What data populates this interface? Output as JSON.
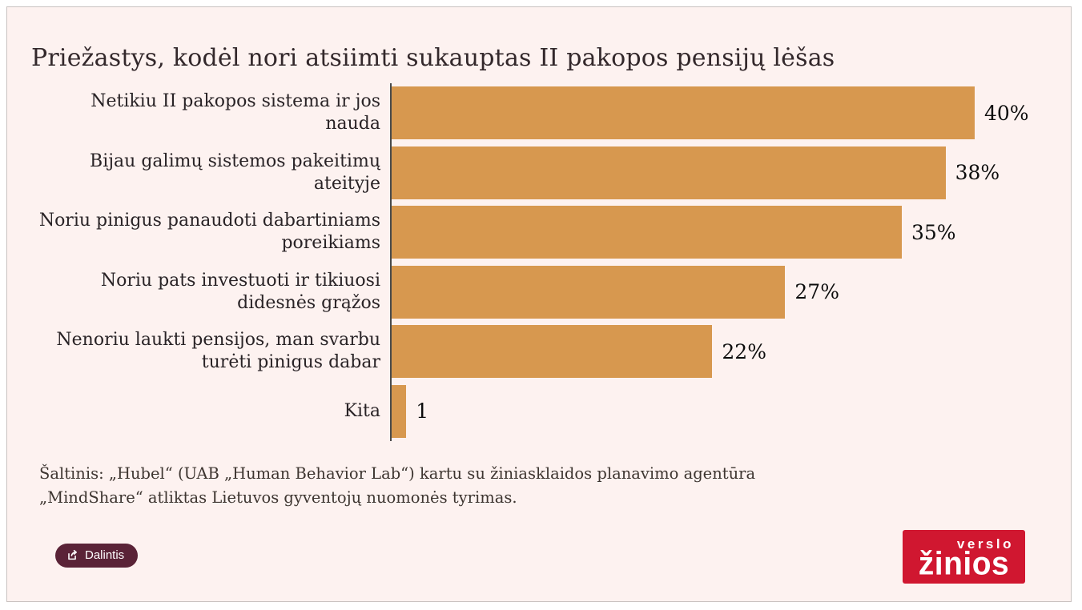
{
  "title": "Priežastys, kodėl nori atsiimti sukauptas II pakopos pensijų lėšas",
  "chart_data": {
    "type": "bar",
    "orientation": "horizontal",
    "title": "Priežastys, kodėl nori atsiimti sukauptas II pakopos pensijų lėšas",
    "categories": [
      "Netikiu II pakopos sistema ir jos\nnauda",
      "Bijau galimų sistemos pakeitimų\nateityje",
      "Noriu pinigus panaudoti dabartiniams\nporeikiams",
      "Noriu pats investuoti ir tikiuosi\ndidesnės grąžos",
      "Nenoriu laukti pensijos, man svarbu\nturėti pinigus dabar",
      "Kita"
    ],
    "values": [
      40,
      38,
      35,
      27,
      22,
      1
    ],
    "value_labels": [
      "40%",
      "38%",
      "35%",
      "27%",
      "22%",
      "1"
    ],
    "xlabel": "",
    "ylabel": "",
    "xlim": [
      0,
      44
    ],
    "grid": false,
    "legend": false,
    "bar_color": "#d7984f",
    "axis_line_color": "#4a4a4a"
  },
  "source": {
    "line1": "Šaltinis: „Hubel“ (UAB „Human Behavior Lab“) kartu su žiniasklaidos planavimo agentūra",
    "line2": "„MindShare“ atliktas Lietuvos gyventojų nuomonės tyrimas."
  },
  "share_button": {
    "label": "Dalintis",
    "background": "#5a2337"
  },
  "logo": {
    "line1": "verslo",
    "line2": "žinios",
    "background": "#d01730"
  },
  "colors": {
    "card_background": "#fdf2f0",
    "card_border": "#c9c2c0",
    "bar": "#d7984f",
    "title_text": "#33282b",
    "button_background": "#5a2337",
    "logo_background": "#d01730"
  }
}
